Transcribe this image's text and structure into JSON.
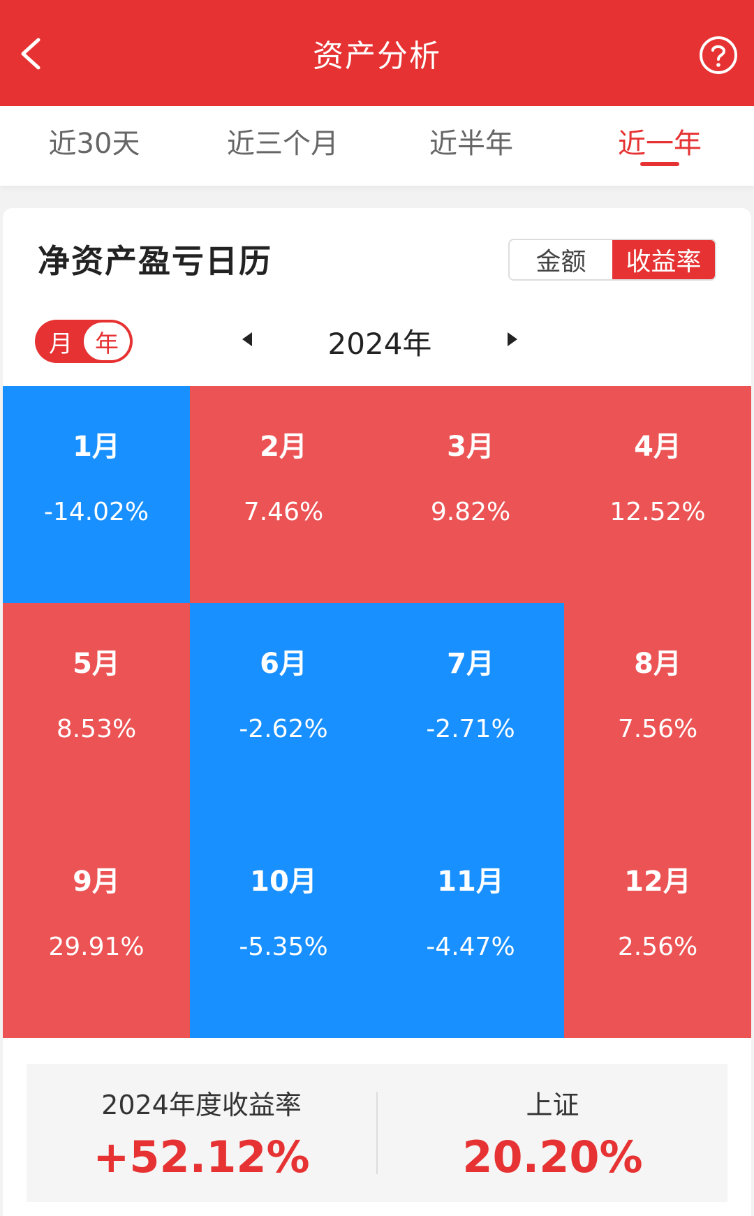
{
  "header": {
    "title": "资产分析"
  },
  "tabs": [
    {
      "label": "近30天",
      "active": false
    },
    {
      "label": "近三个月",
      "active": false
    },
    {
      "label": "近半年",
      "active": false
    },
    {
      "label": "近一年",
      "active": true
    }
  ],
  "calendar": {
    "title": "净资产盈亏日历",
    "mode_options": [
      "金额",
      "收益率"
    ],
    "mode_selected": "收益率",
    "period_toggle": [
      "月",
      "年"
    ],
    "period_selected": "年",
    "year_label": "2024年",
    "months": [
      {
        "month": "1月",
        "rate": "-14.02%"
      },
      {
        "month": "2月",
        "rate": "7.46%"
      },
      {
        "month": "3月",
        "rate": "9.82%"
      },
      {
        "month": "4月",
        "rate": "12.52%"
      },
      {
        "month": "5月",
        "rate": "8.53%"
      },
      {
        "month": "6月",
        "rate": "-2.62%"
      },
      {
        "month": "7月",
        "rate": "-2.71%"
      },
      {
        "month": "8月",
        "rate": "7.56%"
      },
      {
        "month": "9月",
        "rate": "29.91%"
      },
      {
        "month": "10月",
        "rate": "-5.35%"
      },
      {
        "month": "11月",
        "rate": "-4.47%"
      },
      {
        "month": "12月",
        "rate": "2.56%"
      }
    ]
  },
  "summary": {
    "annual_label": "2024年度收益率",
    "annual_value": "+52.12%",
    "index_label": "上证",
    "index_value": "20.20%"
  },
  "colors": {
    "brand_red": "#e63232",
    "gain_cell": "#ec5354",
    "loss_cell": "#1890ff"
  }
}
